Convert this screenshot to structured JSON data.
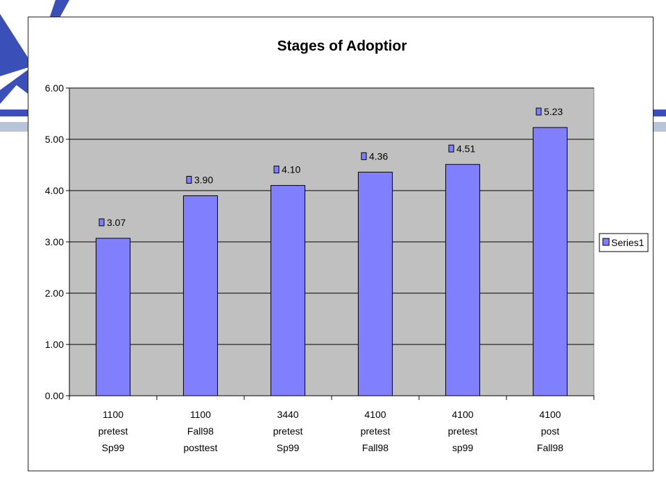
{
  "colors": {
    "decor_blue": "#3a4fb8",
    "decor_light": "#b8c4d8",
    "plot_bg": "#c0c0c0",
    "bar_fill": "#8080ff",
    "bar_stroke": "#000000"
  },
  "chart_data": {
    "type": "bar",
    "title": "Stages of Adoptior",
    "xlabel": "",
    "ylabel": "",
    "ylim": [
      0,
      6
    ],
    "yticks": [
      "0.00",
      "1.00",
      "2.00",
      "3.00",
      "4.00",
      "5.00",
      "6.00"
    ],
    "grid": true,
    "legend_position": "right",
    "categories": [
      [
        "1100",
        "pretest",
        "Sp99"
      ],
      [
        "1100",
        "Fall98",
        "posttest"
      ],
      [
        "3440",
        "pretest",
        "Sp99"
      ],
      [
        "4100",
        "pretest",
        "Fall98"
      ],
      [
        "4100",
        "pretest",
        "sp99"
      ],
      [
        "4100",
        "post",
        "Fall98"
      ]
    ],
    "series": [
      {
        "name": "Series1",
        "legend_label": "Series1",
        "values": [
          3.07,
          3.9,
          4.1,
          4.36,
          4.51,
          5.23
        ],
        "labels": [
          "3.07",
          "3.90",
          "4.10",
          "4.36",
          "4.51",
          "5.23"
        ]
      }
    ]
  }
}
